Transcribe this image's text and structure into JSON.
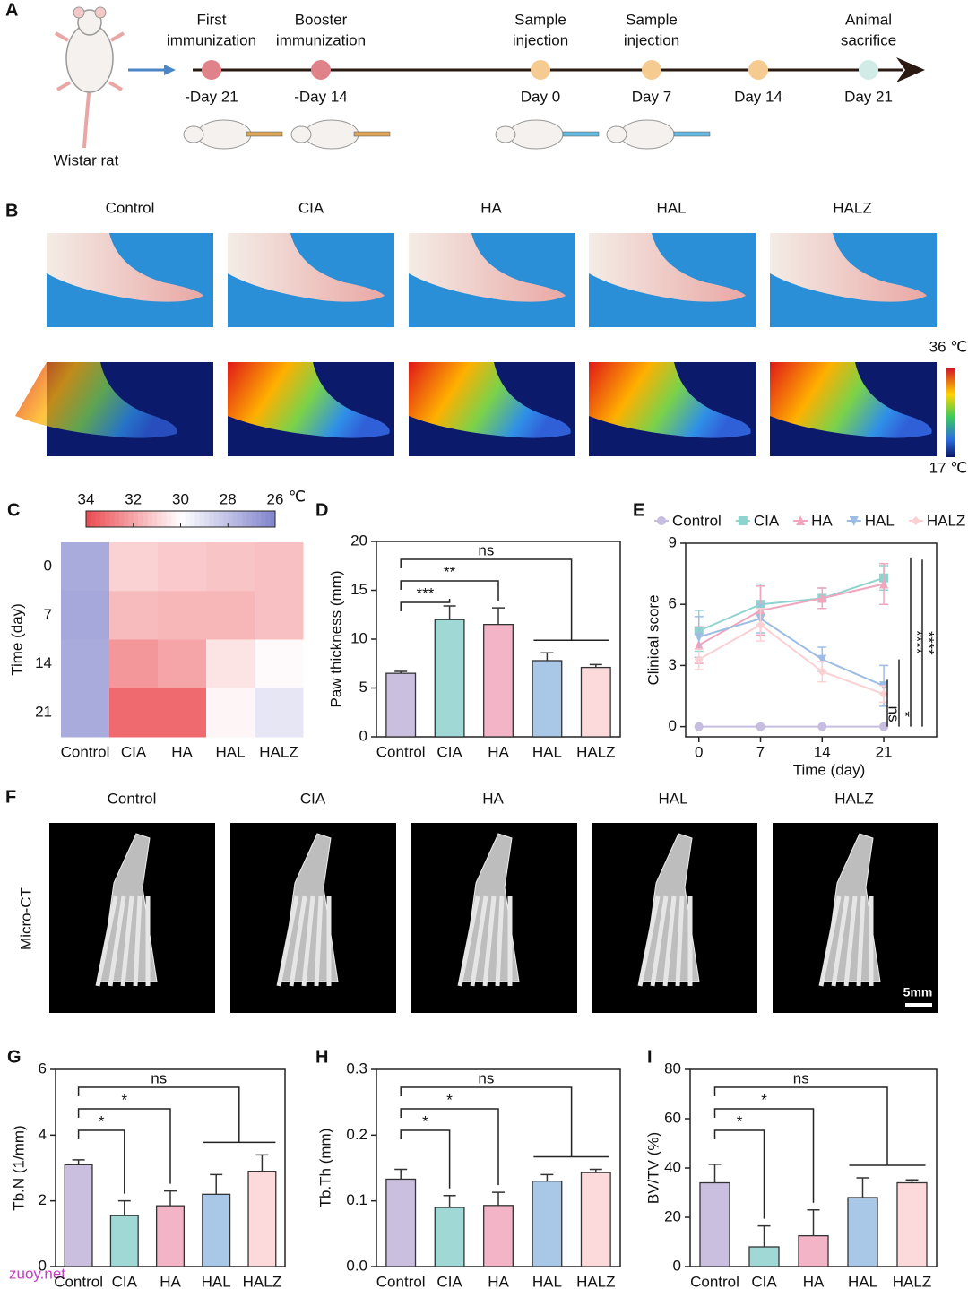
{
  "panel_a": {
    "letter": "A",
    "subject": "Wistar rat",
    "events": [
      {
        "label": [
          "First",
          "immunization"
        ],
        "day": "-Day 21",
        "color": "#e0828a"
      },
      {
        "label": [
          "Booster",
          "immunization"
        ],
        "day": "-Day 14",
        "color": "#e0828a"
      },
      {
        "label": [
          "Sample",
          "injection"
        ],
        "day": "Day 0",
        "color": "#f6cb92"
      },
      {
        "label": [
          "Sample",
          "injection"
        ],
        "day": "Day 7",
        "color": "#f6cb92"
      },
      {
        "day": "Day 14",
        "color": "#f6cb92"
      },
      {
        "label": [
          "Animal",
          "sacrifice"
        ],
        "day": "Day 21",
        "color": "#d2ebe6"
      }
    ]
  },
  "panel_b": {
    "letter": "B",
    "groups": [
      "Control",
      "CIA",
      "HA",
      "HAL",
      "HALZ"
    ],
    "scale_max": "36 ℃",
    "scale_min": "17 ℃"
  },
  "panel_f": {
    "letter": "F",
    "groups": [
      "Control",
      "CIA",
      "HA",
      "HAL",
      "HALZ"
    ],
    "row_label": "Micro-CT",
    "scale_bar": "5mm"
  },
  "watermark": "zuoy.net",
  "chart_data": [
    {
      "letter": "C",
      "type": "heatmap",
      "categories": [
        "Control",
        "CIA",
        "HA",
        "HAL",
        "HALZ"
      ],
      "y_categories": [
        "0",
        "7",
        "14",
        "21"
      ],
      "ylabel": "Time (day)",
      "values": [
        [
          27.3,
          31.0,
          31.2,
          31.3,
          31.4
        ],
        [
          27.2,
          31.5,
          31.6,
          31.6,
          31.4
        ],
        [
          27.3,
          32.3,
          32.0,
          30.6,
          30.1
        ],
        [
          27.3,
          33.3,
          33.3,
          30.2,
          29.2
        ]
      ],
      "clim": [
        26,
        34
      ],
      "cticks": [
        34,
        32,
        30,
        28,
        26
      ],
      "unit": "℃",
      "colors": [
        "#8083cc",
        "#ffffff",
        "#ea4a50"
      ]
    },
    {
      "letter": "D",
      "type": "bar",
      "categories": [
        "Control",
        "CIA",
        "HA",
        "HAL",
        "HALZ"
      ],
      "values": [
        6.5,
        12,
        11.5,
        7.8,
        7.1
      ],
      "errors": [
        0.2,
        1.4,
        1.7,
        0.8,
        0.3
      ],
      "colors": [
        "#cbbfe0",
        "#9fd8d4",
        "#f3b4c7",
        "#a9c7e7",
        "#fcdadb"
      ],
      "ylim": [
        0,
        20
      ],
      "yticks": [
        0,
        5,
        10,
        15,
        20
      ],
      "ylabel": "Paw thickness (mm)",
      "annotations": [
        {
          "label": "***",
          "from": "Control",
          "to": [
            "CIA"
          ]
        },
        {
          "label": "**",
          "from": "Control",
          "to": [
            "HA"
          ]
        },
        {
          "label": "ns",
          "from": "Control",
          "to": [
            "HAL",
            "HALZ"
          ]
        }
      ]
    },
    {
      "letter": "E",
      "type": "line",
      "x": [
        0,
        7,
        14,
        21
      ],
      "xlim": [
        -1.5,
        27
      ],
      "xticks": [
        0,
        7,
        14,
        21
      ],
      "ylim": [
        -0.5,
        9
      ],
      "yticks": [
        0,
        3,
        6,
        9
      ],
      "xlabel": "Time (day)",
      "ylabel": "Clinical score",
      "series": [
        {
          "name": "Control",
          "color": "#c7bde0",
          "marker": "circle",
          "values": [
            0,
            0,
            0,
            0
          ],
          "errors": [
            0,
            0,
            0,
            0
          ]
        },
        {
          "name": "CIA",
          "color": "#8fd3cf",
          "marker": "square",
          "values": [
            4.7,
            6,
            6.3,
            7.3
          ],
          "errors": [
            1,
            1,
            0.5,
            0.6
          ]
        },
        {
          "name": "HA",
          "color": "#f0a6bc",
          "marker": "triangle",
          "values": [
            4,
            5.7,
            6.3,
            7
          ],
          "errors": [
            0.9,
            1.2,
            0.5,
            1
          ]
        },
        {
          "name": "HAL",
          "color": "#9dbde3",
          "marker": "triangle-down",
          "values": [
            4.4,
            5.3,
            3.3,
            2
          ],
          "errors": [
            1,
            0.7,
            0.6,
            1
          ]
        },
        {
          "name": "HALZ",
          "color": "#fbd0d3",
          "marker": "diamond",
          "values": [
            3.3,
            5,
            2.7,
            1.6
          ],
          "errors": [
            0.5,
            0.8,
            0.5,
            0.4
          ]
        }
      ],
      "annotations": [
        {
          "label": "ns",
          "from": "Control",
          "to": "HALZ"
        },
        {
          "label": "*",
          "from": "Control",
          "to": "HAL"
        },
        {
          "label": "****",
          "from": "Control",
          "to": "HA"
        },
        {
          "label": "****",
          "from": "Control",
          "to": "CIA"
        }
      ]
    },
    {
      "letter": "G",
      "type": "bar",
      "categories": [
        "Control",
        "CIA",
        "HA",
        "HAL",
        "HALZ"
      ],
      "values": [
        3.1,
        1.55,
        1.85,
        2.2,
        2.9
      ],
      "errors": [
        0.15,
        0.45,
        0.45,
        0.6,
        0.5
      ],
      "colors": [
        "#cbbfe0",
        "#9fd8d4",
        "#f3b4c7",
        "#a9c7e7",
        "#fcdadb"
      ],
      "ylim": [
        0,
        6
      ],
      "yticks": [
        0,
        2,
        4,
        6
      ],
      "ylabel": "Tb.N (1/mm)",
      "annotations": [
        {
          "label": "*",
          "from": "Control",
          "to": [
            "CIA"
          ]
        },
        {
          "label": "*",
          "from": "Control",
          "to": [
            "HA"
          ]
        },
        {
          "label": "ns",
          "from": "Control",
          "to": [
            "HAL",
            "HALZ"
          ]
        }
      ]
    },
    {
      "letter": "H",
      "type": "bar",
      "categories": [
        "Control",
        "CIA",
        "HA",
        "HAL",
        "HALZ"
      ],
      "values": [
        0.133,
        0.09,
        0.093,
        0.13,
        0.143
      ],
      "errors": [
        0.015,
        0.018,
        0.02,
        0.01,
        0.005
      ],
      "colors": [
        "#cbbfe0",
        "#9fd8d4",
        "#f3b4c7",
        "#a9c7e7",
        "#fcdadb"
      ],
      "ylim": [
        0,
        0.3
      ],
      "yticks": [
        {
          "value": 0,
          "label": "0.0"
        },
        0.1,
        0.2,
        0.3
      ],
      "ylabel": "Tb.Th (mm)",
      "annotations": [
        {
          "label": "*",
          "from": "Control",
          "to": [
            "CIA"
          ]
        },
        {
          "label": "*",
          "from": "Control",
          "to": [
            "HA"
          ]
        },
        {
          "label": "ns",
          "from": "Control",
          "to": [
            "HAL",
            "HALZ"
          ]
        }
      ]
    },
    {
      "letter": "I",
      "type": "bar",
      "categories": [
        "Control",
        "CIA",
        "HA",
        "HAL",
        "HALZ"
      ],
      "values": [
        34,
        8,
        12.5,
        28,
        34
      ],
      "errors": [
        7.5,
        8.5,
        10.5,
        8,
        1.2
      ],
      "colors": [
        "#cbbfe0",
        "#9fd8d4",
        "#f3b4c7",
        "#a9c7e7",
        "#fcdadb"
      ],
      "ylim": [
        0,
        80
      ],
      "yticks": [
        0,
        20,
        40,
        60,
        80
      ],
      "ylabel": "BV/TV (%)",
      "annotations": [
        {
          "label": "*",
          "from": "Control",
          "to": [
            "CIA"
          ]
        },
        {
          "label": "*",
          "from": "Control",
          "to": [
            "HA"
          ]
        },
        {
          "label": "ns",
          "from": "Control",
          "to": [
            "HAL",
            "HALZ"
          ]
        }
      ]
    }
  ]
}
